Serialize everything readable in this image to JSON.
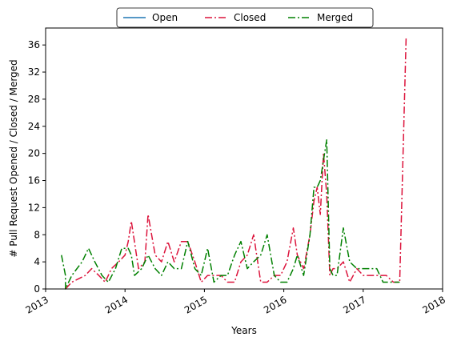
{
  "chart_data": {
    "type": "line",
    "title": "",
    "xlabel": "Years",
    "ylabel": "# Pull Request Opened / Closed / Merged",
    "xlim": [
      2013.0,
      2018.0
    ],
    "ylim": [
      0,
      38.5
    ],
    "xticks": [
      2013,
      2014,
      2015,
      2016,
      2017,
      2018
    ],
    "xtick_labels": [
      "2013",
      "2014",
      "2015",
      "2016",
      "2017",
      "2018"
    ],
    "yticks": [
      0,
      4,
      8,
      12,
      16,
      20,
      24,
      28,
      32,
      36
    ],
    "ytick_labels": [
      "0",
      "4",
      "8",
      "12",
      "16",
      "20",
      "24",
      "28",
      "32",
      "36"
    ],
    "grid": false,
    "legend": {
      "placement": "top-center",
      "entries": [
        "Open",
        "Closed",
        "Merged"
      ]
    },
    "series": [
      {
        "name": "Open",
        "color": "#1f77b4",
        "style": "solid",
        "x": [],
        "y": []
      },
      {
        "name": "Closed",
        "color": "#dc143c",
        "style": "dashdot",
        "x": [
          2013.25,
          2013.33,
          2013.5,
          2013.58,
          2013.67,
          2013.75,
          2013.83,
          2013.92,
          2014.0,
          2014.04,
          2014.08,
          2014.17,
          2014.25,
          2014.29,
          2014.38,
          2014.46,
          2014.54,
          2014.62,
          2014.71,
          2014.79,
          2014.88,
          2014.96,
          2015.04,
          2015.12,
          2015.21,
          2015.29,
          2015.38,
          2015.46,
          2015.54,
          2015.62,
          2015.71,
          2015.79,
          2015.88,
          2015.96,
          2016.04,
          2016.12,
          2016.17,
          2016.25,
          2016.33,
          2016.38,
          2016.42,
          2016.46,
          2016.5,
          2016.54,
          2016.58,
          2016.62,
          2016.67,
          2016.75,
          2016.83,
          2016.92,
          2017.0,
          2017.08,
          2017.17,
          2017.29,
          2017.38,
          2017.46,
          2017.54
        ],
        "y": [
          0,
          1,
          2,
          3,
          2,
          1,
          3,
          4,
          5,
          7,
          10,
          3,
          4,
          11,
          5,
          4,
          7,
          4,
          7,
          7,
          4,
          1,
          2,
          2,
          2,
          1,
          1,
          4,
          5,
          8,
          1,
          1,
          2,
          2,
          4,
          9,
          5,
          3,
          8,
          13,
          15,
          11,
          20,
          14,
          2,
          3,
          3,
          4,
          1,
          3,
          2,
          2,
          2,
          2,
          1,
          1,
          37
        ]
      },
      {
        "name": "Merged",
        "color": "#008000",
        "style": "dashdot",
        "x": [
          2013.2,
          2013.25,
          2013.25,
          2013.33,
          2013.46,
          2013.54,
          2013.62,
          2013.71,
          2013.79,
          2013.88,
          2013.96,
          2014.04,
          2014.08,
          2014.12,
          2014.21,
          2014.29,
          2014.38,
          2014.46,
          2014.54,
          2014.62,
          2014.71,
          2014.79,
          2014.88,
          2014.96,
          2015.04,
          2015.12,
          2015.21,
          2015.29,
          2015.38,
          2015.46,
          2015.54,
          2015.62,
          2015.71,
          2015.79,
          2015.88,
          2015.96,
          2016.04,
          2016.12,
          2016.17,
          2016.25,
          2016.33,
          2016.38,
          2016.42,
          2016.46,
          2016.5,
          2016.54,
          2016.58,
          2016.62,
          2016.67,
          2016.75,
          2016.83,
          2016.92,
          2017.0,
          2017.08,
          2017.17,
          2017.25,
          2017.38,
          2017.46
        ],
        "y": [
          5,
          2,
          0,
          2,
          4,
          6,
          4,
          2,
          1,
          3,
          6,
          6,
          5,
          2,
          3,
          5,
          3,
          2,
          4,
          3,
          3,
          7,
          3,
          2,
          6,
          1,
          2,
          2,
          5,
          7,
          3,
          4,
          5,
          8,
          2,
          1,
          1,
          3,
          5,
          2,
          8,
          15,
          15,
          16,
          19,
          22,
          3,
          2,
          2,
          9,
          4,
          3,
          3,
          3,
          3,
          1,
          1,
          1
        ]
      }
    ]
  }
}
